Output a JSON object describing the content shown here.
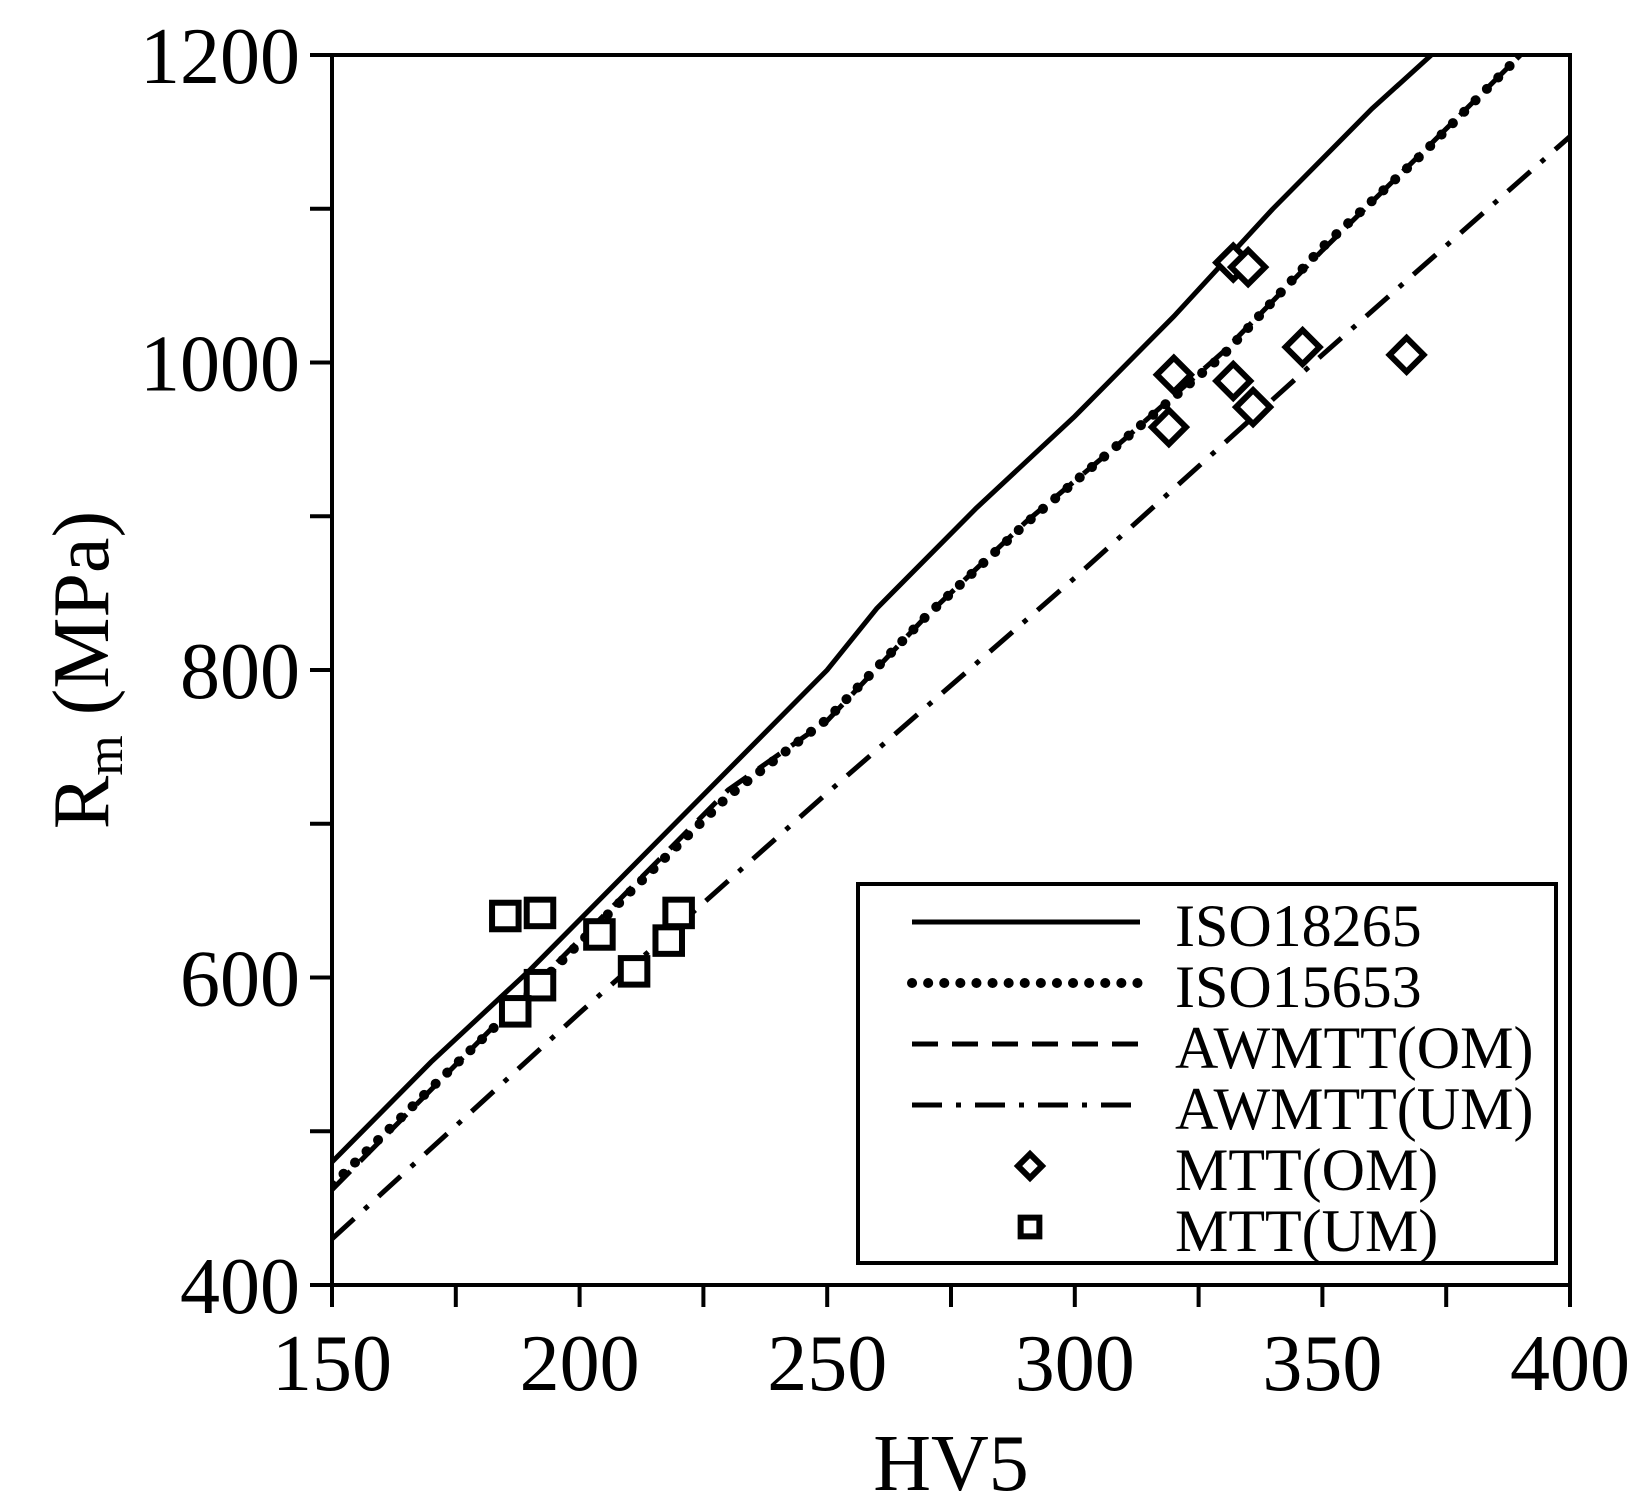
{
  "chart_data": {
    "type": "scatter",
    "xlabel": "HV5",
    "ylabel_main": "R",
    "ylabel_sub": "m",
    "ylabel_unit": " (MPa)",
    "xlim": [
      150,
      400
    ],
    "ylim": [
      400,
      1200
    ],
    "x_ticks": [
      {
        "value": 150,
        "label": "150"
      },
      {
        "value": 200,
        "label": "200"
      },
      {
        "value": 250,
        "label": "250"
      },
      {
        "value": 300,
        "label": "300"
      },
      {
        "value": 350,
        "label": "350"
      },
      {
        "value": 400,
        "label": "400"
      }
    ],
    "x_minor_ticks": [
      175,
      225,
      275,
      325,
      375
    ],
    "y_ticks": [
      {
        "value": 400,
        "label": "400"
      },
      {
        "value": 600,
        "label": "600"
      },
      {
        "value": 800,
        "label": "800"
      },
      {
        "value": 1000,
        "label": "1000"
      },
      {
        "value": 1200,
        "label": "1200"
      }
    ],
    "y_minor_ticks": [
      500,
      700,
      900,
      1100
    ],
    "grid": false,
    "legend_position": "bottom-right",
    "line_series": [
      {
        "name": "ISO18265",
        "style": "solid",
        "points": [
          [
            150,
            480
          ],
          [
            170,
            545
          ],
          [
            190,
            605
          ],
          [
            210,
            670
          ],
          [
            230,
            735
          ],
          [
            250,
            800
          ],
          [
            260,
            840
          ],
          [
            280,
            905
          ],
          [
            300,
            965
          ],
          [
            320,
            1030
          ],
          [
            340,
            1100
          ],
          [
            360,
            1165
          ],
          [
            372,
            1200
          ]
        ]
      },
      {
        "name": "ISO15653",
        "style": "dotted",
        "points": [
          [
            150,
            465
          ],
          [
            170,
            528
          ],
          [
            190,
            590
          ],
          [
            210,
            655
          ],
          [
            230,
            718
          ],
          [
            250,
            768
          ],
          [
            270,
            835
          ],
          [
            290,
            895
          ],
          [
            310,
            950
          ],
          [
            330,
            1005
          ],
          [
            350,
            1075
          ],
          [
            370,
            1135
          ],
          [
            390,
            1200
          ]
        ]
      },
      {
        "name": "AWMTT(OM)",
        "style": "dashed",
        "points": [
          [
            150,
            462
          ],
          [
            170,
            527
          ],
          [
            190,
            592
          ],
          [
            210,
            657
          ],
          [
            230,
            722
          ],
          [
            250,
            767
          ],
          [
            270,
            835
          ],
          [
            290,
            896
          ],
          [
            310,
            950
          ],
          [
            330,
            1007
          ],
          [
            350,
            1073
          ],
          [
            370,
            1136
          ],
          [
            390,
            1200
          ]
        ]
      },
      {
        "name": "AWMTT(UM)",
        "style": "dashdot",
        "points": [
          [
            150,
            430
          ],
          [
            200,
            577
          ],
          [
            250,
            720
          ],
          [
            300,
            860
          ],
          [
            350,
            1005
          ],
          [
            400,
            1147
          ]
        ]
      }
    ],
    "scatter_series": [
      {
        "name": "MTT(OM)",
        "marker": "diamond",
        "points": [
          [
            332,
            1065
          ],
          [
            335,
            1062
          ],
          [
            320,
            992
          ],
          [
            319,
            958
          ],
          [
            332,
            988
          ],
          [
            336,
            971
          ],
          [
            346,
            1010
          ],
          [
            367,
            1005
          ]
        ]
      },
      {
        "name": "MTT(UM)",
        "marker": "square",
        "points": [
          [
            185,
            640
          ],
          [
            192,
            642
          ],
          [
            204,
            628
          ],
          [
            211,
            604
          ],
          [
            218,
            624
          ],
          [
            220,
            642
          ],
          [
            192,
            595
          ],
          [
            187,
            578
          ]
        ]
      }
    ]
  }
}
